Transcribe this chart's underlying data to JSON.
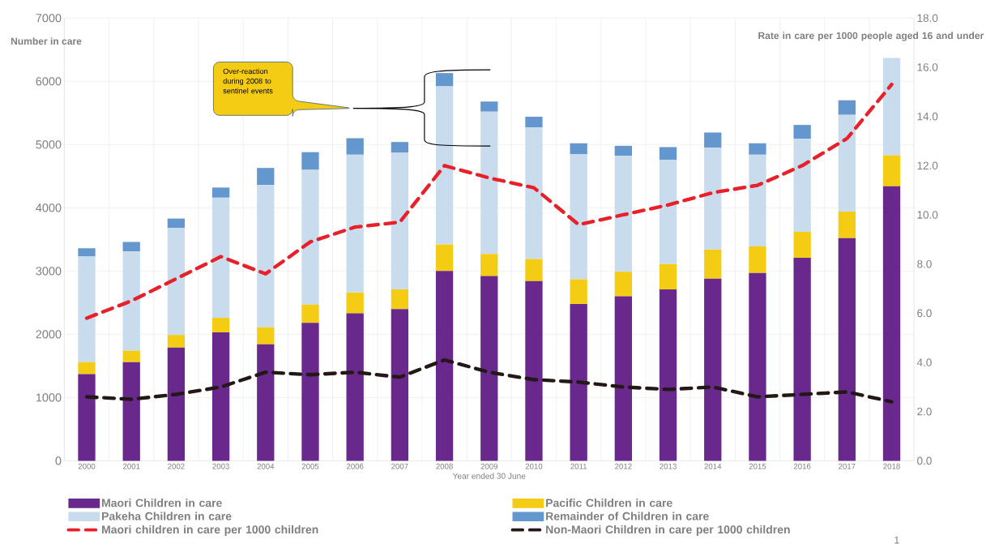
{
  "chart_data": {
    "type": "bar",
    "stacked": true,
    "xlabel": "Year ended 30 June",
    "ylabel": "Number in care",
    "y2label": "Rate in care per 1000 people aged 16 and under",
    "categories": [
      "2000",
      "2001",
      "2002",
      "2003",
      "2004",
      "2005",
      "2006",
      "2007",
      "2008",
      "2009",
      "2010",
      "2011",
      "2012",
      "2013",
      "2014",
      "2015",
      "2016",
      "2017",
      "2018"
    ],
    "series": [
      {
        "name": "Maori Children in care",
        "color": "#68288c",
        "values": [
          1370,
          1560,
          1790,
          2030,
          1840,
          2180,
          2330,
          2400,
          3000,
          2920,
          2840,
          2480,
          2600,
          2710,
          2880,
          2970,
          3210,
          3520,
          4340
        ]
      },
      {
        "name": "Pacific Children in care",
        "color": "#f5cc14",
        "values": [
          190,
          180,
          200,
          230,
          270,
          290,
          330,
          310,
          420,
          350,
          350,
          390,
          390,
          400,
          460,
          420,
          410,
          420,
          490
        ]
      },
      {
        "name": "Pakeha Children in care",
        "color": "#c9dcee",
        "values": [
          1670,
          1570,
          1690,
          1900,
          2250,
          2130,
          2180,
          2160,
          2500,
          2250,
          2080,
          1980,
          1830,
          1650,
          1610,
          1450,
          1470,
          1530,
          1540
        ]
      },
      {
        "name": "Remainder of Children in care",
        "color": "#6497cd",
        "values": [
          130,
          150,
          150,
          160,
          270,
          280,
          260,
          170,
          210,
          160,
          170,
          170,
          160,
          200,
          240,
          180,
          220,
          230,
          0
        ]
      },
      {
        "name": "Maori children in care per 1000 children",
        "type": "line",
        "axis": "y2",
        "line_style": "dashed",
        "color": "#e8202a",
        "values": [
          5.8,
          6.5,
          7.4,
          8.3,
          7.6,
          8.9,
          9.5,
          9.7,
          12.0,
          11.5,
          11.1,
          9.6,
          10.0,
          10.4,
          10.9,
          11.2,
          12.0,
          13.1,
          15.3
        ]
      },
      {
        "name": "Non-Maori Children in care per 1000 children",
        "type": "line",
        "axis": "y2",
        "line_style": "dashed",
        "color": "#231815",
        "values": [
          2.6,
          2.5,
          2.7,
          3.0,
          3.6,
          3.5,
          3.6,
          3.4,
          4.1,
          3.6,
          3.3,
          3.2,
          3.0,
          2.9,
          3.0,
          2.6,
          2.7,
          2.8,
          2.4
        ]
      }
    ],
    "ylim": [
      0,
      7000
    ],
    "yticks": [
      0,
      1000,
      2000,
      3000,
      4000,
      5000,
      6000,
      7000
    ],
    "y2lim": [
      0,
      18
    ],
    "y2ticks": [
      {
        "value": 0,
        "label": "0.0"
      },
      {
        "value": 2,
        "label": "2.0"
      },
      {
        "value": 4,
        "label": "4.0"
      },
      {
        "value": 6,
        "label": "6.0"
      },
      {
        "value": 8,
        "label": "8.0"
      },
      {
        "value": 10,
        "label": "10.0"
      },
      {
        "value": 12,
        "label": "12.0"
      },
      {
        "value": 14,
        "label": "14.0"
      },
      {
        "value": 16,
        "label": "16.0"
      },
      {
        "value": 18,
        "label": "18.0"
      }
    ],
    "grid": true,
    "legend": "bottom",
    "annotations": [
      "Over-reaction during 2008 to sentinel events",
      "1"
    ]
  }
}
